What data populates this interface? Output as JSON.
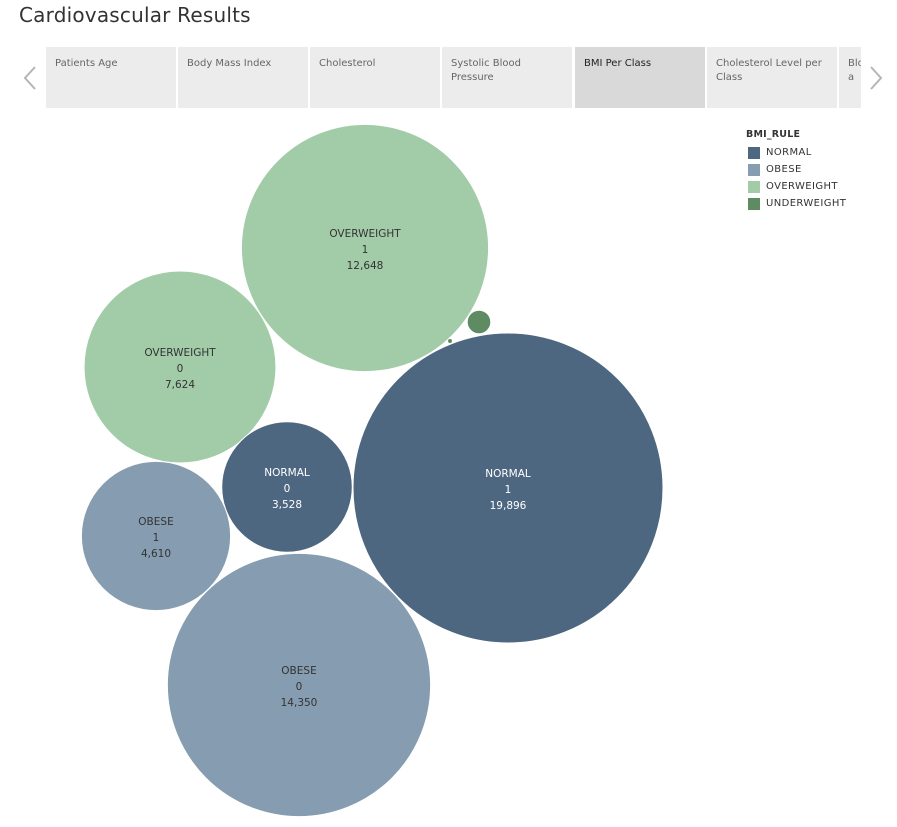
{
  "page": {
    "title": "Cardiovascular Results"
  },
  "tabs": [
    {
      "label": "Patients Age",
      "active": false
    },
    {
      "label": "Body Mass Index",
      "active": false
    },
    {
      "label": "Cholesterol",
      "active": false
    },
    {
      "label": "Systolic Blood Pressure",
      "active": false
    },
    {
      "label": "BMI Per Class",
      "active": true
    },
    {
      "label": "Cholesterol Level per Class",
      "active": false
    },
    {
      "label": "Blo Cla",
      "active": false
    }
  ],
  "legend": {
    "title": "BMI_RULE",
    "items": [
      {
        "label": "NORMAL",
        "color": "#4e6780"
      },
      {
        "label": "OBESE",
        "color": "#869db1"
      },
      {
        "label": "OVERWEIGHT",
        "color": "#a2cca8"
      },
      {
        "label": "UNDERWEIGHT",
        "color": "#5e8b62"
      }
    ]
  },
  "chart_data": {
    "type": "bubble",
    "points": [
      {
        "bmi_rule": "OVERWEIGHT",
        "class": "1",
        "value_label": "12,648",
        "value": 12648,
        "text_color": "#333333"
      },
      {
        "bmi_rule": "OVERWEIGHT",
        "class": "0",
        "value_label": "7,624",
        "value": 7624,
        "text_color": "#333333"
      },
      {
        "bmi_rule": "NORMAL",
        "class": "0",
        "value_label": "3,528",
        "value": 3528,
        "text_color": "#ffffff"
      },
      {
        "bmi_rule": "NORMAL",
        "class": "1",
        "value_label": "19,896",
        "value": 19896,
        "text_color": "#ffffff"
      },
      {
        "bmi_rule": "OBESE",
        "class": "1",
        "value_label": "4,610",
        "value": 4610,
        "text_color": "#333333"
      },
      {
        "bmi_rule": "OBESE",
        "class": "0",
        "value_label": "14,350",
        "value": 14350,
        "text_color": "#333333"
      },
      {
        "bmi_rule": "UNDERWEIGHT",
        "class": "1",
        "value_label": "",
        "value": 115,
        "text_color": "#333333"
      },
      {
        "bmi_rule": "UNDERWEIGHT",
        "class": "0",
        "value_label": "",
        "value": 5,
        "text_color": "#333333"
      }
    ]
  }
}
